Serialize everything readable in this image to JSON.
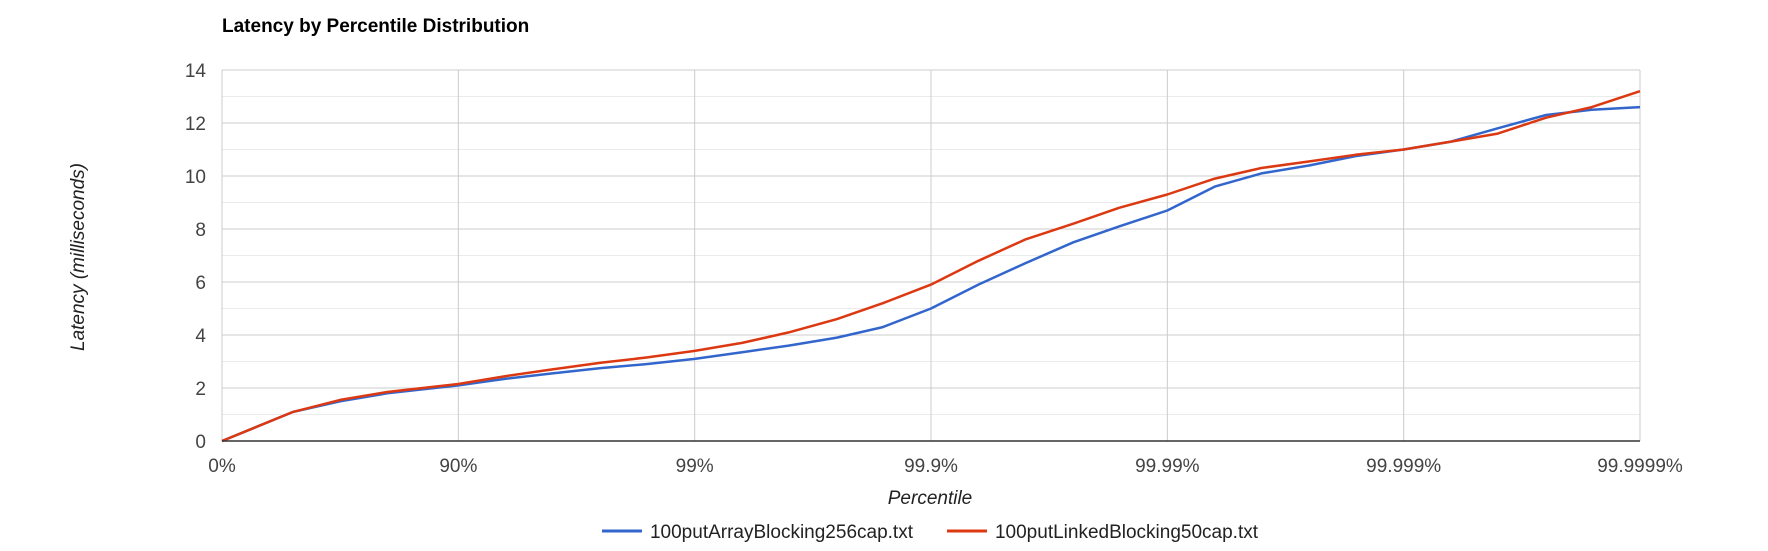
{
  "chart_data": {
    "type": "line",
    "title": "Latency by Percentile Distribution",
    "xlabel": "Percentile",
    "ylabel": "Latency (milliseconds)",
    "x_scale": "log(1/(1-percentile))",
    "x_ticks": [
      "0%",
      "90%",
      "99%",
      "99.9%",
      "99.99%",
      "99.999%",
      "99.9999%"
    ],
    "y_ticks": [
      "0",
      "2",
      "4",
      "6",
      "8",
      "10",
      "12",
      "14"
    ],
    "ylim": [
      0,
      14
    ],
    "grid": true,
    "legend_position": "bottom",
    "x": [
      "0%",
      "50%",
      "68.4%",
      "80%",
      "90%",
      "93.7%",
      "96.0%",
      "97.5%",
      "98.4%",
      "99%",
      "99.37%",
      "99.60%",
      "99.75%",
      "99.84%",
      "99.9%",
      "99.937%",
      "99.960%",
      "99.975%",
      "99.984%",
      "99.99%",
      "99.9937%",
      "99.9960%",
      "99.9975%",
      "99.9984%",
      "99.999%",
      "99.99937%",
      "99.99960%",
      "99.99975%",
      "99.99984%",
      "99.9999%"
    ],
    "series": [
      {
        "name": "100putArrayBlocking256cap.txt",
        "color": "#3366cc",
        "values": [
          0.0,
          1.1,
          1.5,
          1.8,
          2.1,
          2.35,
          2.55,
          2.75,
          2.9,
          3.1,
          3.35,
          3.6,
          3.9,
          4.3,
          5.0,
          5.9,
          6.7,
          7.5,
          8.1,
          8.7,
          9.6,
          10.1,
          10.4,
          10.75,
          11.0,
          11.3,
          11.8,
          12.3,
          12.5,
          12.6
        ]
      },
      {
        "name": "100putLinkedBlocking50cap.txt",
        "color": "#dc3912",
        "values": [
          0.0,
          1.1,
          1.55,
          1.85,
          2.15,
          2.45,
          2.7,
          2.95,
          3.15,
          3.4,
          3.7,
          4.1,
          4.6,
          5.2,
          5.9,
          6.8,
          7.6,
          8.2,
          8.8,
          9.3,
          9.9,
          10.3,
          10.55,
          10.8,
          11.0,
          11.3,
          11.6,
          12.2,
          12.6,
          13.2
        ]
      }
    ]
  }
}
